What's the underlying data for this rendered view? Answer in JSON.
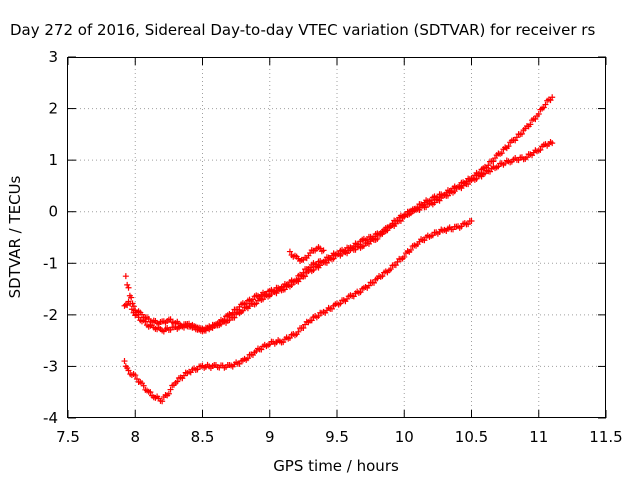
{
  "chart_data": {
    "type": "scatter",
    "title": "Day 272 of 2016, Sidereal Day-to-day VTEC variation (SDTVAR) for receiver rs",
    "xlabel": "GPS time / hours",
    "ylabel": "SDTVAR / TECUs",
    "xlim": [
      7.5,
      11.5
    ],
    "ylim": [
      -4,
      3
    ],
    "x_ticks": [
      "7.5",
      "8",
      "8.5",
      "9",
      "9.5",
      "10",
      "10.5",
      "11",
      "11.5"
    ],
    "y_ticks": [
      "-4",
      "-3",
      "-2",
      "-1",
      "0",
      "1",
      "2",
      "3"
    ],
    "grid": true,
    "marker": "plus",
    "color": "#ff0000",
    "series": [
      {
        "x": [
          7.93,
          7.94,
          7.96,
          7.98,
          8.0,
          8.05,
          8.1,
          8.15,
          8.2,
          8.25,
          8.3,
          8.35,
          8.4,
          8.5,
          8.6,
          8.7,
          8.8,
          8.9,
          9.0,
          9.1,
          9.2,
          9.3,
          9.4,
          9.5,
          9.6,
          9.7,
          9.8,
          9.9,
          10.0,
          10.1,
          10.2,
          10.3,
          10.4,
          10.5,
          10.6,
          10.7,
          10.8,
          10.9,
          11.0,
          11.05,
          11.1
        ],
        "y": [
          -1.25,
          -1.4,
          -1.6,
          -1.75,
          -1.9,
          -2.0,
          -2.1,
          -2.15,
          -2.15,
          -2.1,
          -2.15,
          -2.2,
          -2.2,
          -2.3,
          -2.2,
          -2.0,
          -1.8,
          -1.65,
          -1.55,
          -1.45,
          -1.3,
          -1.05,
          -0.95,
          -0.8,
          -0.7,
          -0.55,
          -0.45,
          -0.3,
          -0.1,
          0.1,
          0.25,
          0.35,
          0.5,
          0.65,
          0.85,
          1.1,
          1.35,
          1.6,
          1.9,
          2.1,
          2.22
        ]
      },
      {
        "x": [
          7.92,
          7.95,
          8.0,
          8.05,
          8.1,
          8.15,
          8.2,
          8.3,
          8.4,
          8.5,
          8.6,
          8.7,
          8.8,
          8.9,
          9.0,
          9.1,
          9.2,
          9.3,
          9.4,
          9.5,
          9.6,
          9.7,
          9.8,
          9.9,
          10.0,
          10.1,
          10.2,
          10.3,
          10.4,
          10.5,
          10.6,
          10.7,
          10.8,
          10.9,
          11.0,
          11.05,
          11.1
        ],
        "y": [
          -1.85,
          -1.75,
          -2.0,
          -2.1,
          -2.2,
          -2.25,
          -2.3,
          -2.25,
          -2.2,
          -2.3,
          -2.2,
          -2.1,
          -1.9,
          -1.75,
          -1.6,
          -1.5,
          -1.35,
          -1.15,
          -1.0,
          -0.85,
          -0.75,
          -0.65,
          -0.5,
          -0.25,
          -0.05,
          0.05,
          0.15,
          0.3,
          0.45,
          0.6,
          0.75,
          0.9,
          1.0,
          1.05,
          1.2,
          1.3,
          1.33
        ]
      },
      {
        "x": [
          9.15,
          9.2,
          9.25,
          9.3,
          9.35,
          9.4
        ],
        "y": [
          -0.8,
          -0.9,
          -0.95,
          -0.8,
          -0.7,
          -0.75
        ]
      },
      {
        "x": [
          7.92,
          7.95,
          8.0,
          8.05,
          8.1,
          8.15,
          8.2,
          8.25,
          8.3,
          8.4,
          8.5,
          8.6,
          8.7,
          8.8,
          8.9,
          9.0,
          9.1,
          9.2,
          9.3,
          9.4,
          9.5,
          9.6,
          9.7,
          9.8,
          9.9,
          10.0,
          10.1,
          10.2,
          10.3,
          10.4,
          10.45,
          10.5
        ],
        "y": [
          -2.9,
          -3.1,
          -3.2,
          -3.35,
          -3.5,
          -3.6,
          -3.65,
          -3.5,
          -3.3,
          -3.1,
          -3.0,
          -3.0,
          -3.0,
          -2.9,
          -2.7,
          -2.55,
          -2.5,
          -2.35,
          -2.1,
          -1.95,
          -1.8,
          -1.65,
          -1.5,
          -1.3,
          -1.1,
          -0.85,
          -0.6,
          -0.45,
          -0.35,
          -0.3,
          -0.25,
          -0.18
        ]
      }
    ]
  }
}
